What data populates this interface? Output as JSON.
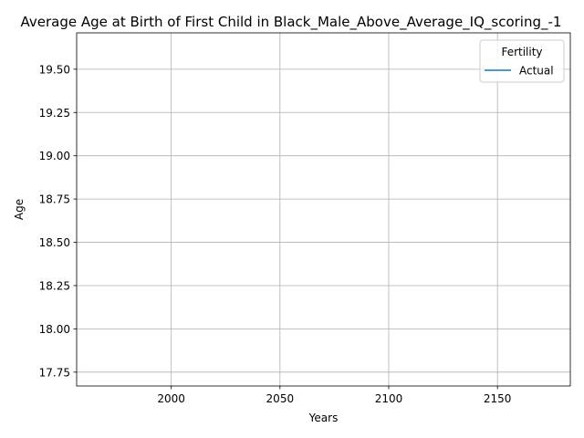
{
  "chart_data": {
    "type": "line",
    "title": "Average Age at Birth of First Child in Black_Male_Above_Average_IQ_scoring_-1",
    "xlabel": "Years",
    "ylabel": "Age",
    "xlim": [
      1956.5,
      2183.5
    ],
    "ylim": [
      17.67,
      19.71
    ],
    "x_ticks": [
      {
        "value": 2000,
        "label": "2000"
      },
      {
        "value": 2050,
        "label": "2050"
      },
      {
        "value": 2100,
        "label": "2100"
      },
      {
        "value": 2150,
        "label": "2150"
      }
    ],
    "y_ticks": [
      {
        "value": 17.75,
        "label": "17.75"
      },
      {
        "value": 18.0,
        "label": "18.00"
      },
      {
        "value": 18.25,
        "label": "18.25"
      },
      {
        "value": 18.5,
        "label": "18.50"
      },
      {
        "value": 18.75,
        "label": "18.75"
      },
      {
        "value": 19.0,
        "label": "19.00"
      },
      {
        "value": 19.25,
        "label": "19.25"
      },
      {
        "value": 19.5,
        "label": "19.50"
      }
    ],
    "grid": true,
    "legend": {
      "title": "Fertility",
      "position": "top-right"
    },
    "series": [
      {
        "name": "Actual",
        "color": "#1f77b4",
        "x": [],
        "y": []
      }
    ]
  }
}
